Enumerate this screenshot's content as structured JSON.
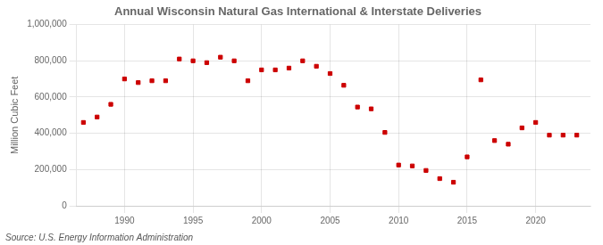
{
  "chart_data": {
    "type": "scatter",
    "title": "Annual Wisconsin Natural Gas International & Interstate Deliveries",
    "ylabel": "Million Cubic Feet",
    "annotation": "Source: U.S. Energy Information Administration",
    "x": [
      1987,
      1988,
      1989,
      1990,
      1991,
      1992,
      1993,
      1994,
      1995,
      1996,
      1997,
      1998,
      1999,
      2000,
      2001,
      2002,
      2003,
      2004,
      2005,
      2006,
      2007,
      2008,
      2009,
      2010,
      2011,
      2012,
      2013,
      2014,
      2015,
      2016,
      2017,
      2018,
      2019,
      2020,
      2021,
      2022,
      2023
    ],
    "values": [
      460000,
      490000,
      560000,
      700000,
      680000,
      690000,
      690000,
      810000,
      800000,
      790000,
      820000,
      800000,
      690000,
      750000,
      750000,
      760000,
      800000,
      770000,
      730000,
      665000,
      545000,
      535000,
      405000,
      225000,
      220000,
      195000,
      150000,
      130000,
      270000,
      695000,
      360000,
      340000,
      430000,
      460000,
      390000,
      390000,
      390000
    ],
    "color": "#cc0000",
    "marker": "square",
    "xlim": [
      1986.5,
      2024
    ],
    "xticks": [
      1990,
      1995,
      2000,
      2005,
      2010,
      2015,
      2020
    ],
    "ylim": [
      0,
      1000000
    ],
    "yticks": [
      0,
      {
        "value": 200000,
        "label": "200,000"
      },
      {
        "value": 400000,
        "label": "400,000"
      },
      {
        "value": 600000,
        "label": "600,000"
      },
      {
        "value": 800000,
        "label": "800,000"
      },
      {
        "value": 1000000,
        "label": "1,000,000"
      }
    ],
    "grid": true
  }
}
